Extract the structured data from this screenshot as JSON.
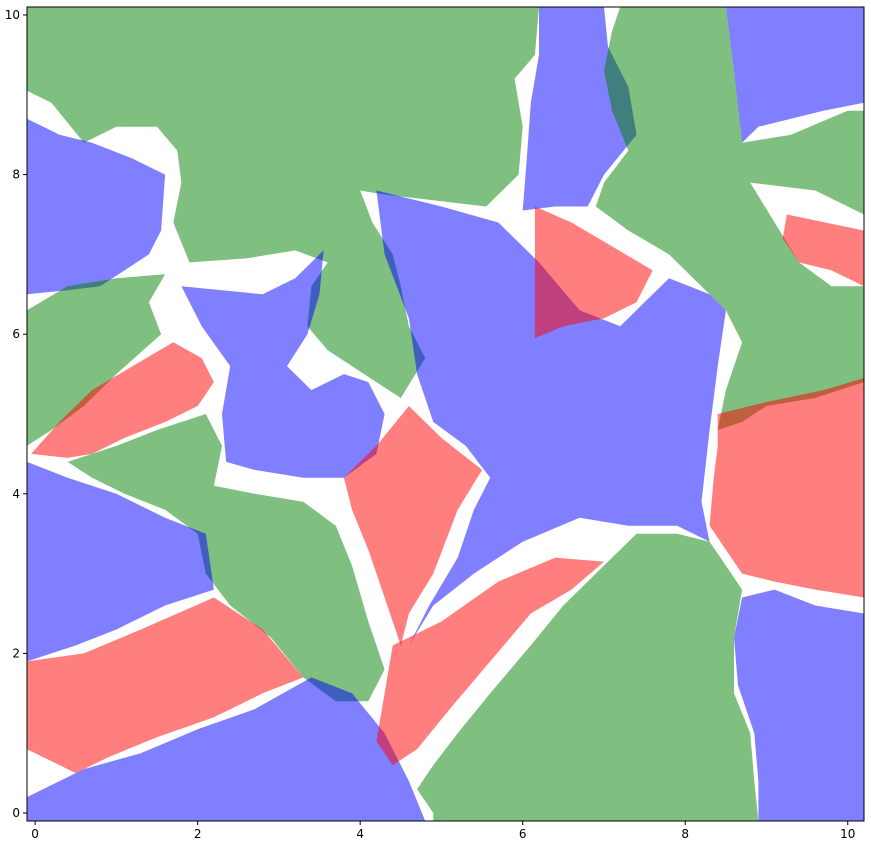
{
  "chart_data": {
    "type": "area",
    "title": "",
    "xlabel": "",
    "ylabel": "",
    "xlim": [
      -0.1,
      10.2
    ],
    "ylim": [
      -0.1,
      10.1
    ],
    "xticks": [
      0,
      2,
      4,
      6,
      8,
      10
    ],
    "yticks": [
      0,
      2,
      4,
      6,
      8,
      10
    ],
    "grid": false,
    "legend": "none",
    "colors": {
      "blue": "#0000ff",
      "red": "#ff0000",
      "green": "#008000"
    },
    "fill_opacity": 0.5,
    "polygons": [
      {
        "color": "green",
        "points": [
          [
            -0.1,
            10.1
          ],
          [
            6.2,
            10.1
          ],
          [
            6.15,
            9.5
          ],
          [
            5.9,
            9.2
          ],
          [
            6.0,
            8.6
          ],
          [
            5.95,
            8.0
          ],
          [
            5.55,
            7.6
          ],
          [
            4.3,
            7.75
          ],
          [
            4.0,
            7.8
          ],
          [
            4.15,
            7.4
          ],
          [
            4.4,
            7.0
          ],
          [
            4.5,
            6.6
          ],
          [
            4.6,
            6.1
          ],
          [
            4.8,
            5.7
          ],
          [
            4.5,
            5.2
          ],
          [
            4.2,
            5.4
          ],
          [
            3.9,
            5.6
          ],
          [
            3.6,
            5.8
          ],
          [
            3.35,
            6.1
          ],
          [
            3.4,
            6.6
          ],
          [
            3.6,
            6.9
          ],
          [
            3.2,
            7.05
          ],
          [
            2.6,
            6.95
          ],
          [
            1.9,
            6.9
          ],
          [
            1.7,
            7.4
          ],
          [
            1.8,
            7.9
          ],
          [
            1.75,
            8.3
          ],
          [
            1.5,
            8.6
          ],
          [
            1.0,
            8.6
          ],
          [
            0.6,
            8.4
          ],
          [
            0.2,
            8.9
          ],
          [
            -0.1,
            9.05
          ]
        ]
      },
      {
        "color": "blue",
        "points": [
          [
            6.2,
            10.1
          ],
          [
            7.0,
            10.1
          ],
          [
            7.05,
            9.6
          ],
          [
            7.3,
            9.1
          ],
          [
            7.4,
            8.5
          ],
          [
            7.0,
            8.0
          ],
          [
            6.8,
            7.6
          ],
          [
            6.4,
            7.6
          ],
          [
            6.0,
            7.55
          ],
          [
            6.05,
            8.2
          ],
          [
            6.1,
            8.9
          ],
          [
            6.2,
            9.5
          ]
        ]
      },
      {
        "color": "green",
        "points": [
          [
            7.2,
            10.1
          ],
          [
            8.5,
            10.1
          ],
          [
            8.6,
            9.3
          ],
          [
            8.7,
            8.4
          ],
          [
            9.3,
            8.5
          ],
          [
            10.0,
            8.8
          ],
          [
            10.2,
            8.8
          ],
          [
            10.2,
            7.5
          ],
          [
            9.6,
            7.8
          ],
          [
            8.8,
            7.9
          ],
          [
            9.1,
            7.4
          ],
          [
            9.4,
            6.9
          ],
          [
            9.8,
            6.6
          ],
          [
            10.2,
            6.6
          ],
          [
            10.2,
            5.4
          ],
          [
            9.6,
            5.2
          ],
          [
            9.0,
            5.1
          ],
          [
            8.7,
            4.9
          ],
          [
            8.4,
            4.8
          ],
          [
            8.5,
            5.3
          ],
          [
            8.7,
            5.9
          ],
          [
            8.5,
            6.3
          ],
          [
            8.1,
            6.7
          ],
          [
            7.8,
            7.0
          ],
          [
            7.3,
            7.3
          ],
          [
            6.9,
            7.6
          ],
          [
            7.0,
            7.9
          ],
          [
            7.3,
            8.3
          ],
          [
            7.1,
            8.8
          ],
          [
            7.0,
            9.3
          ],
          [
            7.1,
            9.8
          ]
        ]
      },
      {
        "color": "blue",
        "points": [
          [
            8.5,
            10.1
          ],
          [
            10.2,
            10.1
          ],
          [
            10.2,
            8.9
          ],
          [
            9.7,
            8.8
          ],
          [
            9.3,
            8.7
          ],
          [
            8.9,
            8.6
          ],
          [
            8.7,
            8.4
          ],
          [
            8.6,
            9.3
          ]
        ]
      },
      {
        "color": "blue",
        "points": [
          [
            -0.1,
            8.7
          ],
          [
            0.3,
            8.5
          ],
          [
            0.7,
            8.4
          ],
          [
            1.2,
            8.2
          ],
          [
            1.6,
            8.0
          ],
          [
            1.55,
            7.3
          ],
          [
            1.4,
            7.0
          ],
          [
            1.1,
            6.8
          ],
          [
            0.8,
            6.6
          ],
          [
            0.4,
            6.55
          ],
          [
            -0.1,
            6.5
          ]
        ]
      },
      {
        "color": "green",
        "points": [
          [
            -0.1,
            6.3
          ],
          [
            0.4,
            6.6
          ],
          [
            1.0,
            6.7
          ],
          [
            1.6,
            6.75
          ],
          [
            1.4,
            6.4
          ],
          [
            1.55,
            6.0
          ],
          [
            1.0,
            5.5
          ],
          [
            0.6,
            5.1
          ],
          [
            0.2,
            4.8
          ],
          [
            -0.1,
            4.6
          ]
        ]
      },
      {
        "color": "blue",
        "points": [
          [
            3.55,
            7.05
          ],
          [
            3.2,
            6.7
          ],
          [
            2.8,
            6.5
          ],
          [
            2.3,
            6.55
          ],
          [
            1.8,
            6.6
          ],
          [
            2.05,
            6.1
          ],
          [
            2.4,
            5.6
          ],
          [
            2.3,
            5.0
          ],
          [
            2.35,
            4.4
          ],
          [
            2.7,
            4.3
          ],
          [
            3.3,
            4.2
          ],
          [
            3.8,
            4.2
          ],
          [
            4.2,
            4.5
          ],
          [
            4.3,
            5.0
          ],
          [
            4.1,
            5.4
          ],
          [
            3.8,
            5.5
          ],
          [
            3.4,
            5.3
          ],
          [
            3.1,
            5.6
          ],
          [
            3.35,
            6.0
          ],
          [
            3.5,
            6.5
          ]
        ]
      },
      {
        "color": "red",
        "points": [
          [
            -0.05,
            4.5
          ],
          [
            0.4,
            4.45
          ],
          [
            0.7,
            4.5
          ],
          [
            1.1,
            4.7
          ],
          [
            1.6,
            4.9
          ],
          [
            2.0,
            5.1
          ],
          [
            2.2,
            5.4
          ],
          [
            2.05,
            5.7
          ],
          [
            1.7,
            5.9
          ],
          [
            1.2,
            5.6
          ],
          [
            0.7,
            5.3
          ],
          [
            0.3,
            4.9
          ]
        ]
      },
      {
        "color": "blue",
        "points": [
          [
            4.2,
            7.8
          ],
          [
            5.0,
            7.6
          ],
          [
            5.7,
            7.4
          ],
          [
            6.2,
            6.9
          ],
          [
            6.7,
            6.3
          ],
          [
            7.2,
            6.1
          ],
          [
            7.8,
            6.7
          ],
          [
            8.3,
            6.5
          ],
          [
            8.5,
            6.3
          ],
          [
            8.4,
            5.6
          ],
          [
            8.3,
            4.8
          ],
          [
            8.2,
            3.9
          ],
          [
            8.3,
            3.4
          ],
          [
            7.9,
            3.6
          ],
          [
            7.3,
            3.6
          ],
          [
            6.7,
            3.7
          ],
          [
            6.0,
            3.4
          ],
          [
            5.4,
            3.0
          ],
          [
            4.9,
            2.6
          ],
          [
            4.6,
            2.1
          ],
          [
            4.85,
            2.6
          ],
          [
            5.2,
            3.2
          ],
          [
            5.4,
            3.8
          ],
          [
            5.6,
            4.2
          ],
          [
            5.3,
            4.6
          ],
          [
            4.9,
            4.9
          ],
          [
            4.7,
            5.5
          ],
          [
            4.6,
            6.2
          ],
          [
            4.3,
            7.0
          ]
        ]
      },
      {
        "color": "red",
        "points": [
          [
            6.15,
            7.6
          ],
          [
            6.6,
            7.4
          ],
          [
            7.1,
            7.1
          ],
          [
            7.6,
            6.8
          ],
          [
            7.4,
            6.4
          ],
          [
            7.0,
            6.2
          ],
          [
            6.5,
            6.1
          ],
          [
            6.15,
            5.95
          ],
          [
            6.15,
            6.7
          ]
        ]
      },
      {
        "color": "red",
        "points": [
          [
            9.25,
            7.5
          ],
          [
            10.2,
            7.3
          ],
          [
            10.2,
            6.6
          ],
          [
            9.8,
            6.8
          ],
          [
            9.4,
            6.9
          ],
          [
            9.2,
            7.2
          ]
        ]
      },
      {
        "color": "red",
        "points": [
          [
            8.4,
            5.0
          ],
          [
            9.0,
            5.15
          ],
          [
            9.7,
            5.3
          ],
          [
            10.2,
            5.45
          ],
          [
            10.2,
            2.7
          ],
          [
            9.6,
            2.8
          ],
          [
            9.1,
            2.9
          ],
          [
            8.7,
            3.0
          ],
          [
            8.5,
            3.3
          ],
          [
            8.3,
            3.6
          ],
          [
            8.35,
            4.2
          ],
          [
            8.4,
            4.6
          ]
        ]
      },
      {
        "color": "red",
        "points": [
          [
            4.6,
            5.1
          ],
          [
            5.0,
            4.7
          ],
          [
            5.5,
            4.3
          ],
          [
            5.2,
            3.8
          ],
          [
            4.9,
            3.0
          ],
          [
            4.6,
            2.5
          ],
          [
            4.5,
            2.1
          ],
          [
            4.3,
            2.7
          ],
          [
            4.1,
            3.3
          ],
          [
            3.9,
            3.8
          ],
          [
            3.8,
            4.2
          ],
          [
            4.2,
            4.6
          ]
        ]
      },
      {
        "color": "green",
        "points": [
          [
            0.4,
            4.4
          ],
          [
            1.0,
            4.6
          ],
          [
            1.5,
            4.8
          ],
          [
            2.1,
            5.0
          ],
          [
            2.3,
            4.6
          ],
          [
            2.2,
            4.1
          ],
          [
            2.7,
            4.0
          ],
          [
            3.3,
            3.9
          ],
          [
            3.7,
            3.6
          ],
          [
            3.9,
            3.1
          ],
          [
            4.1,
            2.4
          ],
          [
            4.3,
            1.8
          ],
          [
            4.1,
            1.4
          ],
          [
            3.7,
            1.4
          ],
          [
            3.3,
            1.7
          ],
          [
            2.9,
            2.2
          ],
          [
            2.4,
            2.6
          ],
          [
            2.1,
            3.0
          ],
          [
            2.0,
            3.5
          ],
          [
            1.6,
            3.8
          ],
          [
            1.1,
            4.0
          ],
          [
            0.7,
            4.2
          ]
        ]
      },
      {
        "color": "blue",
        "points": [
          [
            -0.1,
            4.4
          ],
          [
            0.4,
            4.2
          ],
          [
            1.0,
            4.0
          ],
          [
            1.6,
            3.7
          ],
          [
            2.1,
            3.5
          ],
          [
            2.2,
            2.8
          ],
          [
            1.6,
            2.6
          ],
          [
            1.0,
            2.3
          ],
          [
            0.5,
            2.1
          ],
          [
            -0.1,
            1.9
          ]
        ]
      },
      {
        "color": "red",
        "points": [
          [
            -0.1,
            1.9
          ],
          [
            0.6,
            2.0
          ],
          [
            1.3,
            2.3
          ],
          [
            2.2,
            2.7
          ],
          [
            2.8,
            2.3
          ],
          [
            3.3,
            1.7
          ],
          [
            2.8,
            1.5
          ],
          [
            2.2,
            1.2
          ],
          [
            1.5,
            0.95
          ],
          [
            0.9,
            0.7
          ],
          [
            0.5,
            0.5
          ],
          [
            0.1,
            0.7
          ],
          [
            -0.1,
            0.8
          ]
        ]
      },
      {
        "color": "blue",
        "points": [
          [
            -0.1,
            0.2
          ],
          [
            0.6,
            0.55
          ],
          [
            1.3,
            0.75
          ],
          [
            2.0,
            1.05
          ],
          [
            2.7,
            1.3
          ],
          [
            3.4,
            1.7
          ],
          [
            3.9,
            1.5
          ],
          [
            4.3,
            1.0
          ],
          [
            4.6,
            0.4
          ],
          [
            4.8,
            -0.1
          ],
          [
            -0.1,
            -0.1
          ]
        ]
      },
      {
        "color": "red",
        "points": [
          [
            4.4,
            2.1
          ],
          [
            5.0,
            2.4
          ],
          [
            5.7,
            2.9
          ],
          [
            6.4,
            3.2
          ],
          [
            7.0,
            3.15
          ],
          [
            6.6,
            2.8
          ],
          [
            6.1,
            2.5
          ],
          [
            5.6,
            1.9
          ],
          [
            5.1,
            1.3
          ],
          [
            4.7,
            0.8
          ],
          [
            4.4,
            0.6
          ],
          [
            4.2,
            0.9
          ],
          [
            4.3,
            1.5
          ]
        ]
      },
      {
        "color": "green",
        "points": [
          [
            4.9,
            -0.1
          ],
          [
            8.9,
            -0.1
          ],
          [
            8.85,
            0.4
          ],
          [
            8.8,
            1.0
          ],
          [
            8.6,
            1.5
          ],
          [
            8.6,
            2.2
          ],
          [
            8.7,
            2.8
          ],
          [
            8.5,
            3.1
          ],
          [
            8.3,
            3.4
          ],
          [
            7.9,
            3.5
          ],
          [
            7.4,
            3.5
          ],
          [
            6.9,
            3.0
          ],
          [
            6.5,
            2.6
          ],
          [
            6.1,
            2.1
          ],
          [
            5.6,
            1.5
          ],
          [
            5.2,
            1.0
          ],
          [
            4.9,
            0.6
          ],
          [
            4.7,
            0.3
          ],
          [
            4.9,
            0.0
          ]
        ]
      },
      {
        "color": "blue",
        "points": [
          [
            8.9,
            -0.1
          ],
          [
            10.2,
            -0.1
          ],
          [
            10.2,
            2.5
          ],
          [
            9.6,
            2.6
          ],
          [
            9.1,
            2.8
          ],
          [
            8.7,
            2.7
          ],
          [
            8.6,
            2.2
          ],
          [
            8.65,
            1.6
          ],
          [
            8.85,
            1.0
          ],
          [
            8.9,
            0.4
          ]
        ]
      }
    ]
  }
}
